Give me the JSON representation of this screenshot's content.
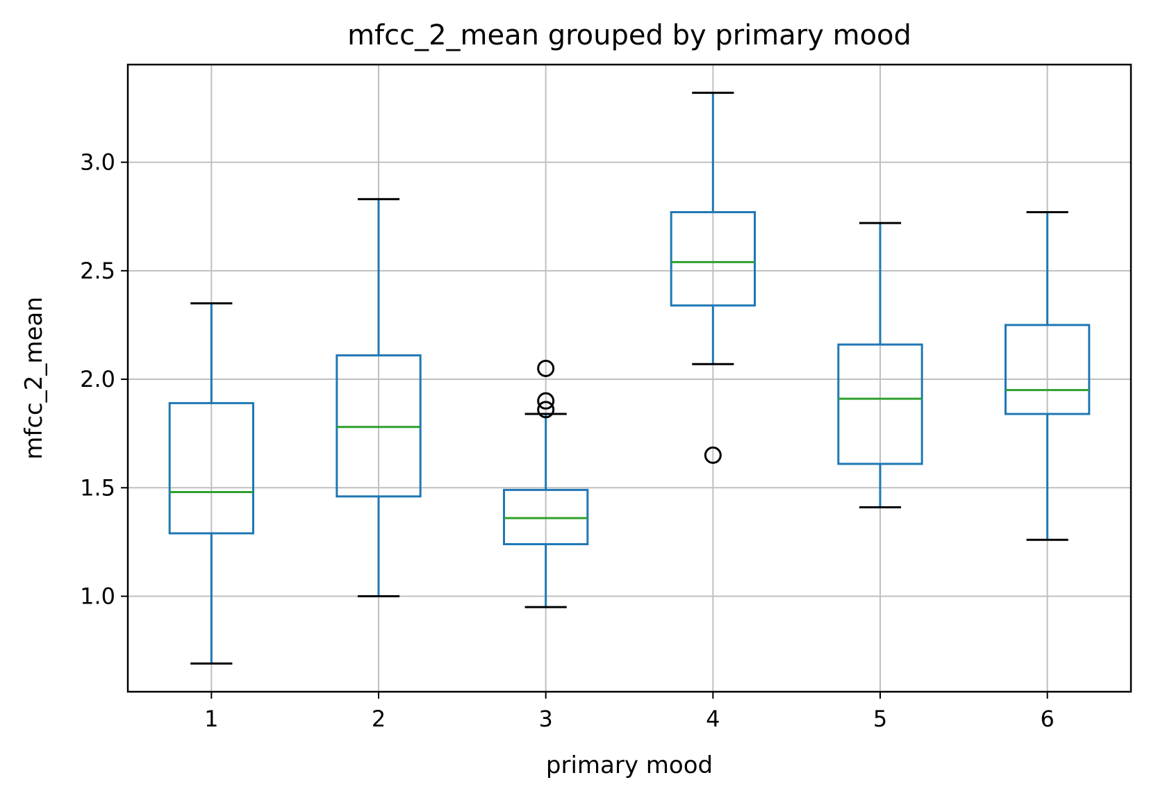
{
  "chart_data": {
    "type": "box",
    "title": "mfcc_2_mean grouped by primary mood",
    "xlabel": "primary mood",
    "ylabel": "mfcc_2_mean",
    "categories": [
      "1",
      "2",
      "3",
      "4",
      "5",
      "6"
    ],
    "ylim": [
      0.56,
      3.45
    ],
    "yticks": [
      1.0,
      1.5,
      2.0,
      2.5,
      3.0
    ],
    "ytick_labels": [
      "1.0",
      "1.5",
      "2.0",
      "2.5",
      "3.0"
    ],
    "grid": true,
    "boxes": [
      {
        "category": "1",
        "whisker_low": 0.69,
        "q1": 1.29,
        "median": 1.48,
        "q3": 1.89,
        "whisker_high": 2.35,
        "outliers": []
      },
      {
        "category": "2",
        "whisker_low": 1.0,
        "q1": 1.46,
        "median": 1.78,
        "q3": 2.11,
        "whisker_high": 2.83,
        "outliers": []
      },
      {
        "category": "3",
        "whisker_low": 0.95,
        "q1": 1.24,
        "median": 1.36,
        "q3": 1.49,
        "whisker_high": 1.84,
        "outliers": [
          1.86,
          1.9,
          2.05
        ]
      },
      {
        "category": "4",
        "whisker_low": 2.07,
        "q1": 2.34,
        "median": 2.54,
        "q3": 2.77,
        "whisker_high": 3.32,
        "outliers": [
          1.65
        ]
      },
      {
        "category": "5",
        "whisker_low": 1.41,
        "q1": 1.61,
        "median": 1.91,
        "q3": 2.16,
        "whisker_high": 2.72,
        "outliers": []
      },
      {
        "category": "6",
        "whisker_low": 1.26,
        "q1": 1.84,
        "median": 1.95,
        "q3": 2.25,
        "whisker_high": 2.77,
        "outliers": []
      }
    ],
    "colors": {
      "box": "#1f77b4",
      "median": "#2ca02c",
      "cap": "#000000",
      "outlier": "#000000",
      "grid": "#bfbfbf"
    }
  }
}
